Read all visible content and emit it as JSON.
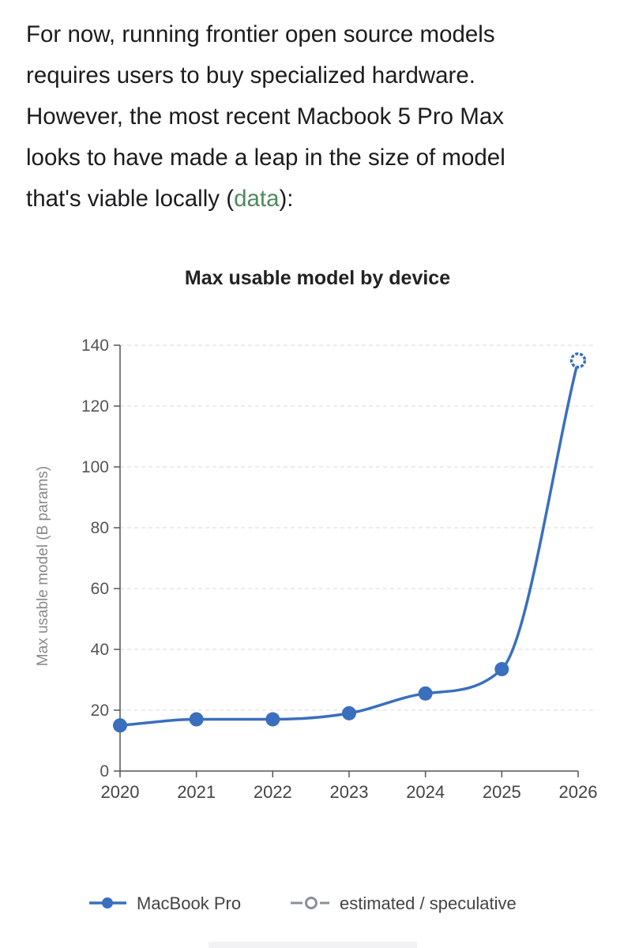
{
  "paragraph": {
    "line1": "For now, running frontier open source models",
    "line2": "requires users to buy specialized hardware.",
    "line3": "However, the most recent Macbook 5 Pro Max",
    "line4": "looks to have made a leap in the size of model",
    "line5_before": "that's viable locally (",
    "line5_link": "data",
    "line5_after": "):"
  },
  "colors": {
    "series": "#3a6fbe",
    "estimated": "#8a9099",
    "link": "#4f8a5b"
  },
  "chart_data": {
    "type": "line",
    "title": "Max usable model by device",
    "xlabel": "",
    "ylabel": "Max usable model (B params)",
    "x": [
      2020,
      2021,
      2022,
      2023,
      2024,
      2025,
      2026
    ],
    "xlim": [
      2020,
      2026
    ],
    "ylim": [
      0,
      140
    ],
    "yticks": [
      0,
      20,
      40,
      60,
      80,
      100,
      120,
      140
    ],
    "grid": true,
    "legend_position": "bottom",
    "series": [
      {
        "name": "MacBook Pro",
        "style": "solid",
        "points": [
          {
            "x": 2020,
            "y": 15
          },
          {
            "x": 2021,
            "y": 17
          },
          {
            "x": 2022,
            "y": 17
          },
          {
            "x": 2023,
            "y": 19
          },
          {
            "x": 2024,
            "y": 25.5
          },
          {
            "x": 2025,
            "y": 33.5
          },
          {
            "x": 2026,
            "y": 135,
            "estimated": true
          }
        ]
      }
    ],
    "legend": [
      {
        "name": "MacBook Pro",
        "style": "solid"
      },
      {
        "name": "estimated / speculative",
        "style": "dashed-hollow"
      }
    ]
  }
}
